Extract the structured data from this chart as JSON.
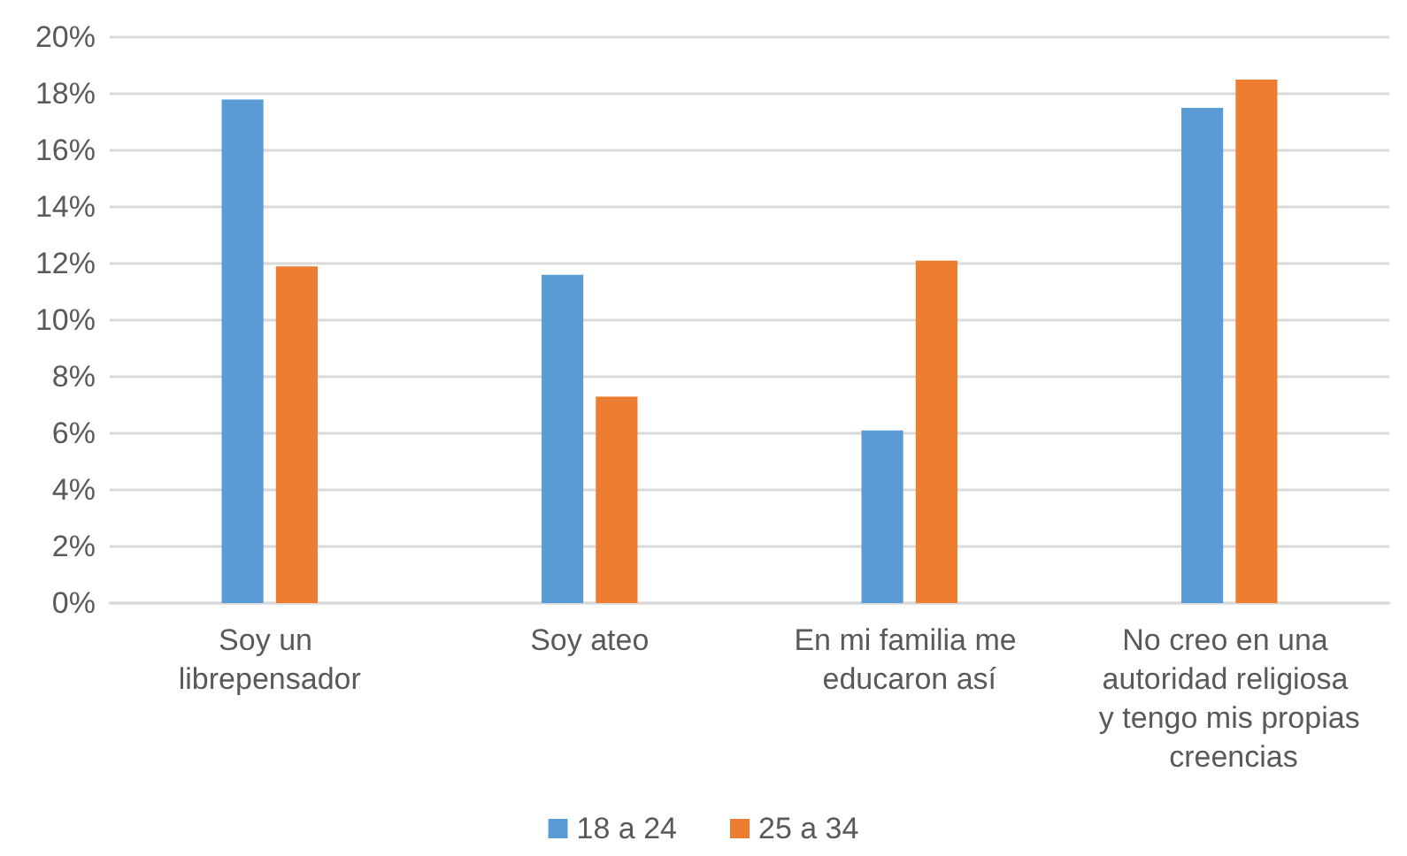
{
  "chart_data": {
    "type": "bar",
    "categories": [
      "Soy un librepensador",
      "Soy ateo",
      "En mi familia me educaron así",
      "No creo en una autoridad religiosa y tengo mis propias creencias"
    ],
    "series": [
      {
        "name": "18 a 24",
        "color": "#5b9bd5",
        "values": [
          17.8,
          11.6,
          6.1,
          17.5
        ]
      },
      {
        "name": "25 a 34",
        "color": "#ed7d31",
        "values": [
          11.9,
          7.3,
          12.1,
          18.5
        ]
      }
    ],
    "ylim": [
      0,
      20
    ],
    "yticks": [
      {
        "value": 0,
        "label": "0%"
      },
      {
        "value": 2,
        "label": "2%"
      },
      {
        "value": 4,
        "label": "4%"
      },
      {
        "value": 6,
        "label": "6%"
      },
      {
        "value": 8,
        "label": "8%"
      },
      {
        "value": 10,
        "label": "10%"
      },
      {
        "value": 12,
        "label": "12%"
      },
      {
        "value": 14,
        "label": "14%"
      },
      {
        "value": 16,
        "label": "16%"
      },
      {
        "value": 18,
        "label": "18%"
      },
      {
        "value": 20,
        "label": "20%"
      }
    ],
    "grid": "y",
    "legend": "bottom"
  }
}
